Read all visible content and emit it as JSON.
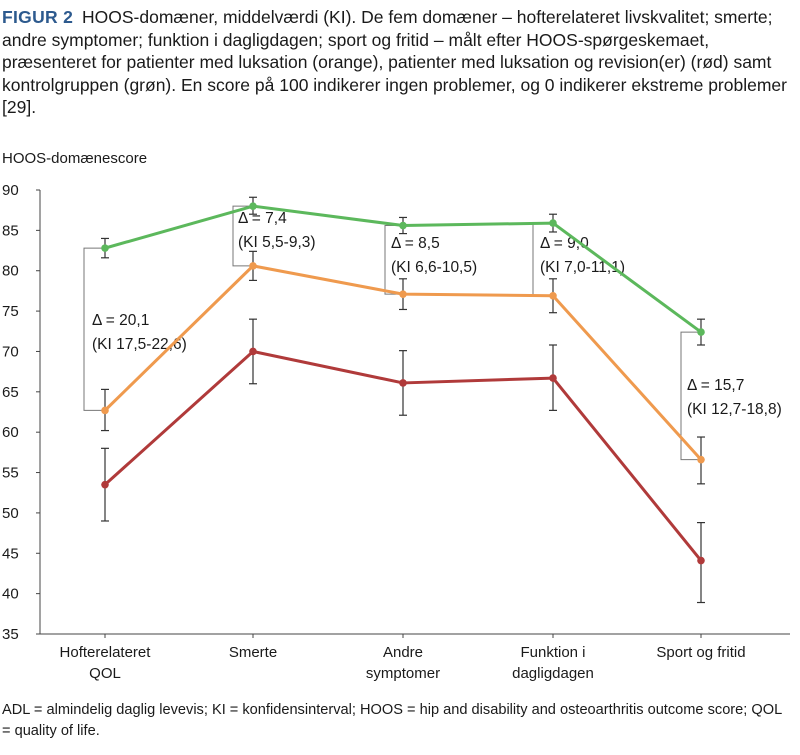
{
  "caption": {
    "label": "FIGUR 2",
    "text": "HOOS-domæner, middelværdi (KI). De fem domæner – hofterelateret livskvalitet; smerte; andre symptomer; funktion i dagligdagen; sport og fritid – målt efter HOOS-spørgeskemaet, præsenteret for patienter med luksation (orange), patienter med luksation og revision(er) (rød) samt kontrolgruppen (grøn). En score på 100 indikerer ingen problemer, og 0 indikerer ekstreme problemer [29]."
  },
  "footnote": "ADL = almindelig daglig levevis; KI = konfidensinterval; HOOS = hip and disability and osteoarthritis outcome score; QOL = quality of life.",
  "chart_data": {
    "type": "line",
    "title": "",
    "ylabel": "HOOS-domænescore",
    "xlabel": "",
    "ylim": [
      35,
      90
    ],
    "yticks": [
      35,
      40,
      45,
      50,
      55,
      60,
      65,
      70,
      75,
      80,
      85,
      90
    ],
    "grid": false,
    "categories": [
      [
        "Hofterelateret",
        "QOL"
      ],
      [
        "Smerte"
      ],
      [
        "Andre",
        "symptomer"
      ],
      [
        "Funktion i",
        "dagligdagen"
      ],
      [
        "Sport og fritid"
      ]
    ],
    "series": [
      {
        "name": "Kontrolgruppen",
        "color": "#5cb85c",
        "values": [
          82.8,
          88.0,
          85.6,
          85.9,
          72.4
        ],
        "ci_low": [
          81.6,
          87.0,
          84.6,
          84.8,
          70.8
        ],
        "ci_high": [
          84.0,
          89.1,
          86.6,
          87.0,
          74.0
        ]
      },
      {
        "name": "Luksation",
        "color": "#ef9a4e",
        "values": [
          62.7,
          80.6,
          77.1,
          76.9,
          56.6
        ],
        "ci_low": [
          60.2,
          78.8,
          75.2,
          74.8,
          53.6
        ],
        "ci_high": [
          65.3,
          82.4,
          79.0,
          79.0,
          59.4
        ]
      },
      {
        "name": "Luksation og revision(er)",
        "color": "#b03a3a",
        "values": [
          53.5,
          70.0,
          66.1,
          66.7,
          44.1
        ],
        "ci_low": [
          49.0,
          66.0,
          62.1,
          62.7,
          38.9
        ],
        "ci_high": [
          58.0,
          74.0,
          70.1,
          70.8,
          48.8
        ]
      }
    ],
    "annotations": [
      {
        "index": 0,
        "from": 62.7,
        "to": 82.8,
        "line1": "Δ = 20,1",
        "line2": "(KI 17,5-22,6)"
      },
      {
        "index": 1,
        "from": 80.6,
        "to": 88.0,
        "line1": "Δ = 7,4",
        "line2": "(KI 5,5-9,3)"
      },
      {
        "index": 2,
        "from": 77.1,
        "to": 85.6,
        "line1": "Δ = 8,5",
        "line2": "(KI 6,6-10,5)"
      },
      {
        "index": 3,
        "from": 76.9,
        "to": 85.9,
        "line1": "Δ = 9,0",
        "line2": "(KI 7,0-11,1)"
      },
      {
        "index": 4,
        "from": 56.6,
        "to": 72.4,
        "line1": "Δ = 15,7",
        "line2": "(KI 12,7-18,8)"
      }
    ]
  }
}
